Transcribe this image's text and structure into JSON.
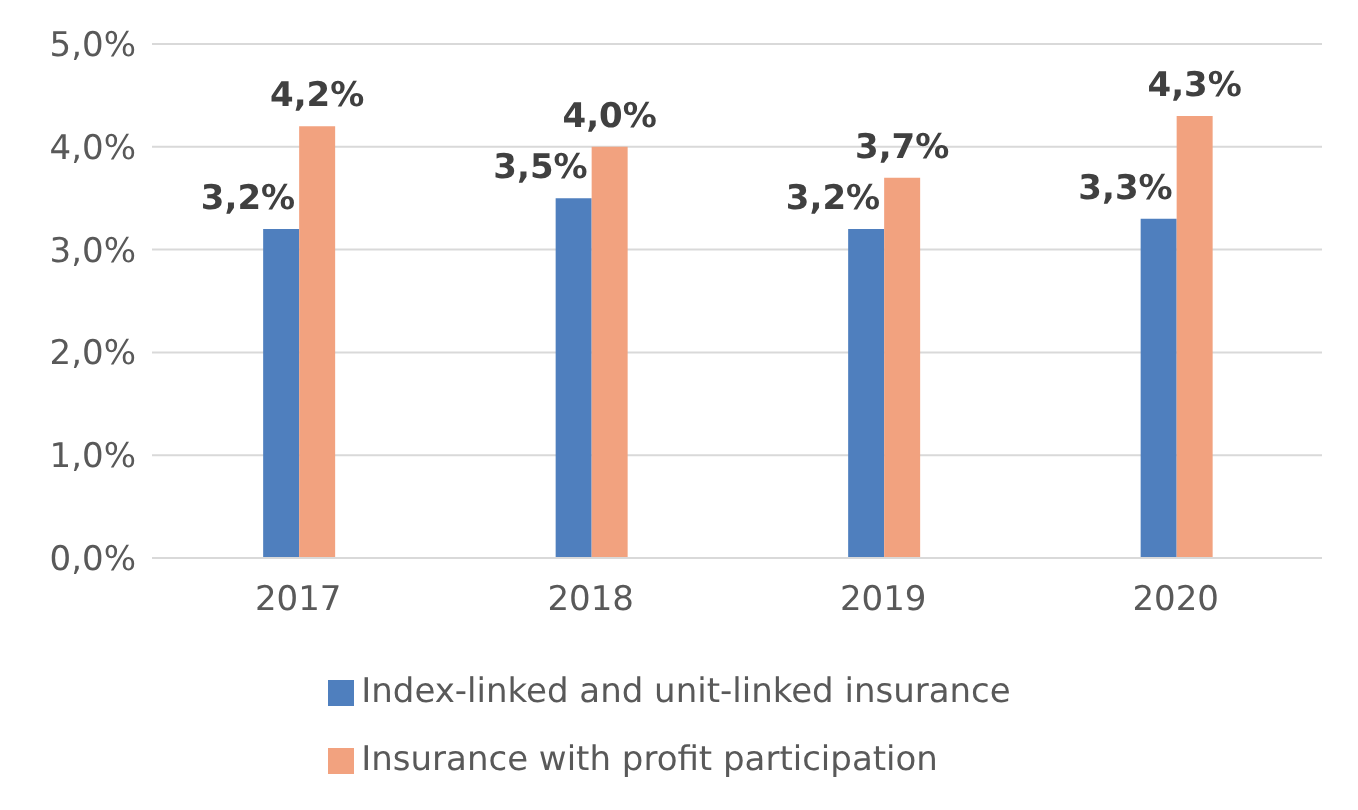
{
  "chart_data": {
    "type": "bar",
    "categories": [
      "2017",
      "2018",
      "2019",
      "2020"
    ],
    "series": [
      {
        "name": "Index-linked and unit-linked insurance",
        "color": "#4f7fbe",
        "values": [
          3.2,
          3.5,
          3.2,
          3.3
        ],
        "value_labels": [
          "3,2%",
          "3,5%",
          "3,2%",
          "3,3%"
        ]
      },
      {
        "name": "Insurance with profit participation",
        "color": "#f2a27f",
        "values": [
          4.2,
          4.0,
          3.7,
          4.3
        ],
        "value_labels": [
          "4,2%",
          "4,0%",
          "3,7%",
          "4,3%"
        ]
      }
    ],
    "ylim": [
      0,
      5
    ],
    "yticks": [
      {
        "value": 0,
        "label": "0,0%"
      },
      {
        "value": 1,
        "label": "1,0%"
      },
      {
        "value": 2,
        "label": "2,0%"
      },
      {
        "value": 3,
        "label": "3,0%"
      },
      {
        "value": 4,
        "label": "4,0%"
      },
      {
        "value": 5,
        "label": "5,0%"
      }
    ],
    "grid": "y",
    "legend": "bottom"
  }
}
